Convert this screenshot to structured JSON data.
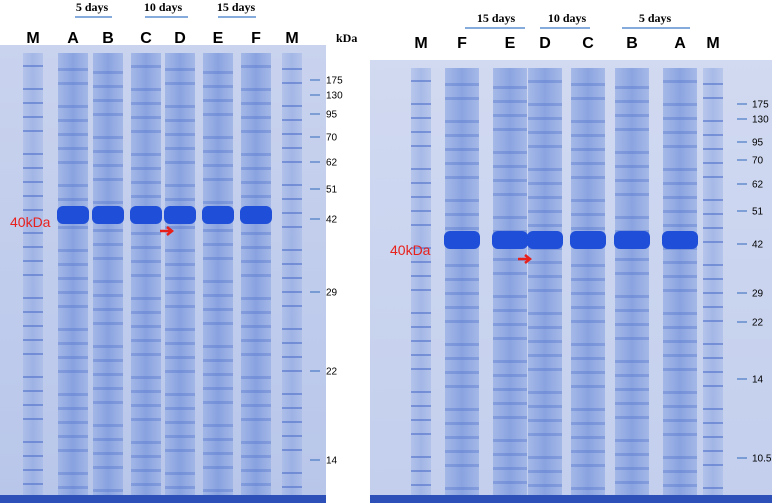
{
  "left_gel": {
    "groups": [
      "5 days",
      "10 days",
      "15 days"
    ],
    "lanes": [
      "M",
      "A",
      "B",
      "C",
      "D",
      "E",
      "F",
      "M"
    ],
    "unit": "kDa",
    "markers": [
      "175",
      "130",
      "95",
      "70",
      "62",
      "51",
      "42",
      "29",
      "22",
      "14"
    ],
    "annotation": "40kDa"
  },
  "right_gel": {
    "groups": [
      "15 days",
      "10 days",
      "5 days"
    ],
    "lanes": [
      "M",
      "F",
      "E",
      "D",
      "C",
      "B",
      "A",
      "M"
    ],
    "markers": [
      "175",
      "130",
      "95",
      "70",
      "62",
      "51",
      "42",
      "29",
      "22",
      "14",
      "10.5"
    ],
    "annotation": "40kDa"
  }
}
